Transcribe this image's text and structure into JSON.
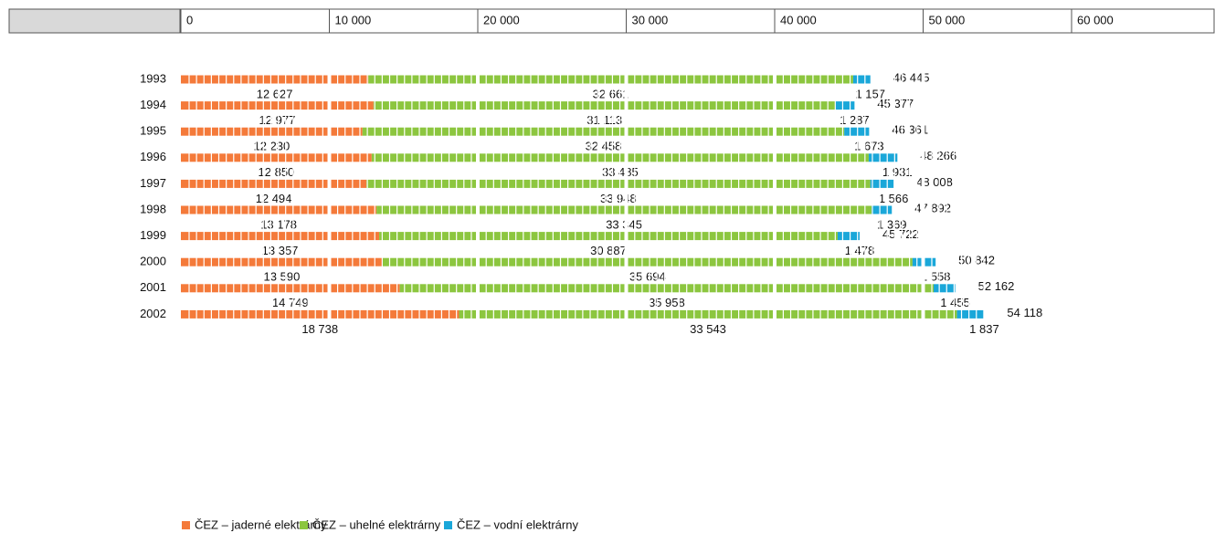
{
  "chart_data": {
    "type": "stacked-bar-horizontal",
    "categories": [
      "1993",
      "1994",
      "1995",
      "1996",
      "1997",
      "1998",
      "1999",
      "2000",
      "2001",
      "2002"
    ],
    "series": [
      {
        "name": "ČEZ – jaderné elektrárny",
        "color": "#f47a3a",
        "values": [
          12627,
          12977,
          12230,
          12850,
          12494,
          13178,
          13357,
          13590,
          14749,
          18738
        ],
        "value_labels": [
          "12 627",
          "12 977",
          "12 230",
          "12 850",
          "12 494",
          "13 178",
          "13 357",
          "13 590",
          "14 749",
          "18 738"
        ]
      },
      {
        "name": "ČEZ – uhelné elektrárny",
        "color": "#8cc63f",
        "values": [
          32661,
          31113,
          32458,
          33485,
          33948,
          33345,
          30887,
          35694,
          35958,
          33543
        ],
        "value_labels": [
          "32 661",
          "31 113",
          "32 458",
          "33 485",
          "33 948",
          "33 345",
          "30 887",
          "35 694",
          "35 958",
          "33 543"
        ]
      },
      {
        "name": "ČEZ – vodní elektrárny",
        "color": "#1aa7d9",
        "values": [
          1157,
          1287,
          1673,
          1931,
          1566,
          1369,
          1478,
          1558,
          1455,
          1837
        ],
        "value_labels": [
          "1 157",
          "1 287",
          "1 673",
          "1 931",
          "1 566",
          "1 369",
          "1 478",
          "1 558",
          "1 455",
          "1 837"
        ]
      }
    ],
    "totals": [
      46445,
      45377,
      46361,
      48266,
      48008,
      47892,
      45722,
      50842,
      52162,
      54118
    ],
    "total_labels": [
      "46 445",
      "45 377",
      "46 361",
      "48 266",
      "48 008",
      "47 892",
      "45 722",
      "50 842",
      "52 162",
      "54 118"
    ],
    "xlim": [
      0,
      60000
    ],
    "xticks": [
      0,
      {
        "value": 10000,
        "label": "10 000"
      },
      {
        "value": 20000,
        "label": "20 000"
      },
      {
        "value": 30000,
        "label": "30 000"
      },
      {
        "value": 40000,
        "label": "40 000"
      },
      {
        "value": 50000,
        "label": "50 000"
      },
      {
        "value": 60000,
        "label": "60 000"
      }
    ],
    "legend": "bottom-left"
  }
}
